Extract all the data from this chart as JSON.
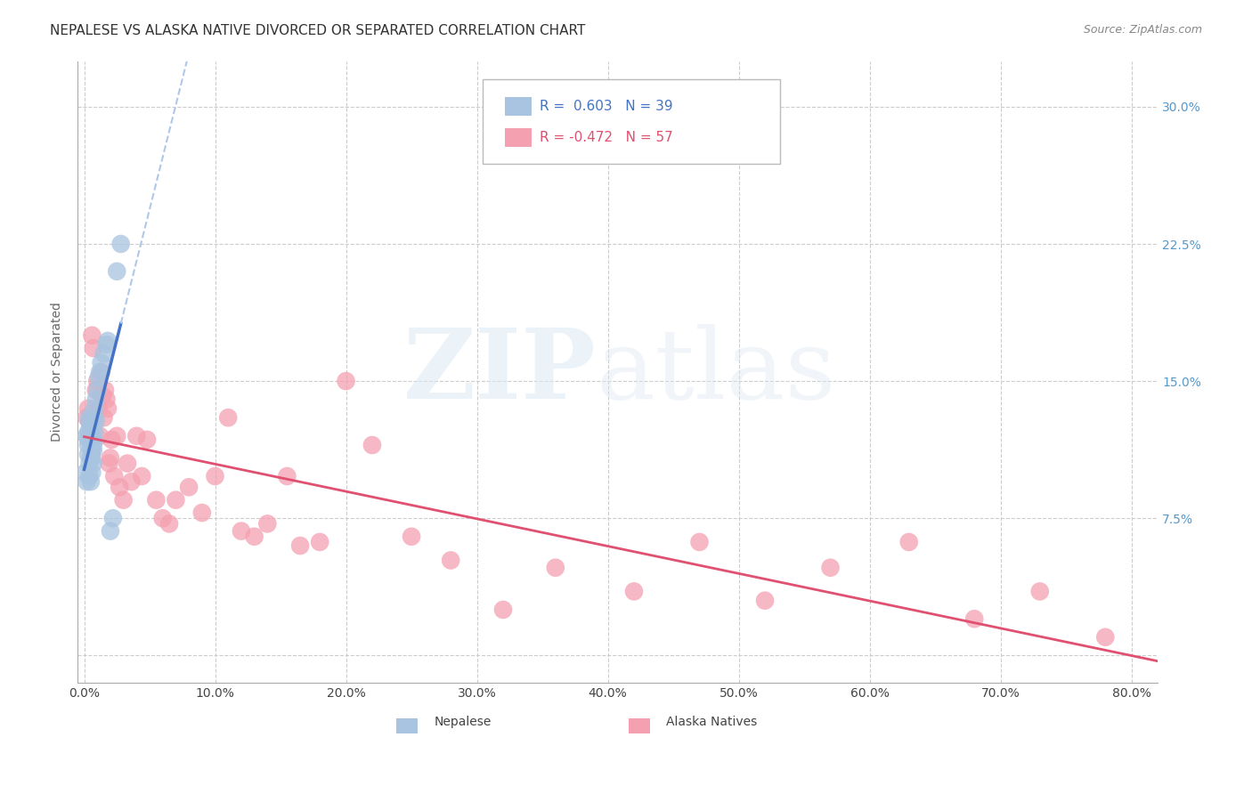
{
  "title": "NEPALESE VS ALASKA NATIVE DIVORCED OR SEPARATED CORRELATION CHART",
  "source": "Source: ZipAtlas.com",
  "ylabel": "Divorced or Separated",
  "xlabel_ticks": [
    "0.0%",
    "",
    "10.0%",
    "",
    "20.0%",
    "",
    "30.0%",
    "",
    "40.0%",
    "",
    "50.0%",
    "",
    "60.0%",
    "",
    "70.0%",
    "",
    "80.0%"
  ],
  "xlabel_vals": [
    0.0,
    0.05,
    0.1,
    0.15,
    0.2,
    0.25,
    0.3,
    0.35,
    0.4,
    0.45,
    0.5,
    0.55,
    0.6,
    0.65,
    0.7,
    0.75,
    0.8
  ],
  "ytick_vals": [
    0.0,
    0.075,
    0.15,
    0.225,
    0.3
  ],
  "ytick_labels": [
    "",
    "7.5%",
    "15.0%",
    "22.5%",
    "30.0%"
  ],
  "xlim": [
    -0.005,
    0.82
  ],
  "ylim": [
    -0.015,
    0.325
  ],
  "nepalese_color": "#a8c4e0",
  "alaska_color": "#f4a0b0",
  "nepalese_line_color": "#4472c4",
  "alaska_line_color": "#e05070",
  "nepalese_dash_color": "#b0c8e8",
  "grid_color": "#cccccc",
  "background_color": "#ffffff",
  "title_fontsize": 11,
  "axis_label_fontsize": 10,
  "tick_fontsize": 10,
  "legend_fontsize": 11,
  "source_fontsize": 9,
  "nepalese_x": [
    0.001,
    0.002,
    0.002,
    0.003,
    0.003,
    0.003,
    0.003,
    0.004,
    0.004,
    0.004,
    0.004,
    0.005,
    0.005,
    0.005,
    0.005,
    0.006,
    0.006,
    0.006,
    0.006,
    0.007,
    0.007,
    0.007,
    0.007,
    0.008,
    0.008,
    0.008,
    0.009,
    0.009,
    0.01,
    0.011,
    0.012,
    0.013,
    0.015,
    0.017,
    0.018,
    0.02,
    0.022,
    0.025,
    0.028
  ],
  "nepalese_y": [
    0.1,
    0.095,
    0.12,
    0.115,
    0.118,
    0.122,
    0.11,
    0.098,
    0.105,
    0.128,
    0.13,
    0.095,
    0.108,
    0.118,
    0.125,
    0.1,
    0.112,
    0.108,
    0.12,
    0.105,
    0.115,
    0.112,
    0.118,
    0.13,
    0.122,
    0.135,
    0.128,
    0.14,
    0.145,
    0.152,
    0.155,
    0.16,
    0.165,
    0.17,
    0.172,
    0.068,
    0.075,
    0.21,
    0.225
  ],
  "alaska_x": [
    0.002,
    0.003,
    0.004,
    0.005,
    0.006,
    0.007,
    0.008,
    0.009,
    0.01,
    0.011,
    0.012,
    0.013,
    0.014,
    0.015,
    0.016,
    0.017,
    0.018,
    0.019,
    0.02,
    0.021,
    0.023,
    0.025,
    0.027,
    0.03,
    0.033,
    0.036,
    0.04,
    0.044,
    0.048,
    0.055,
    0.06,
    0.065,
    0.07,
    0.08,
    0.09,
    0.1,
    0.11,
    0.12,
    0.13,
    0.14,
    0.155,
    0.165,
    0.18,
    0.2,
    0.22,
    0.25,
    0.28,
    0.32,
    0.36,
    0.42,
    0.47,
    0.52,
    0.57,
    0.63,
    0.68,
    0.73,
    0.78
  ],
  "alaska_y": [
    0.13,
    0.135,
    0.128,
    0.125,
    0.175,
    0.168,
    0.13,
    0.145,
    0.15,
    0.135,
    0.12,
    0.155,
    0.142,
    0.13,
    0.145,
    0.14,
    0.135,
    0.105,
    0.108,
    0.118,
    0.098,
    0.12,
    0.092,
    0.085,
    0.105,
    0.095,
    0.12,
    0.098,
    0.118,
    0.085,
    0.075,
    0.072,
    0.085,
    0.092,
    0.078,
    0.098,
    0.13,
    0.068,
    0.065,
    0.072,
    0.098,
    0.06,
    0.062,
    0.15,
    0.115,
    0.065,
    0.052,
    0.025,
    0.048,
    0.035,
    0.062,
    0.03,
    0.048,
    0.062,
    0.02,
    0.035,
    0.01
  ]
}
